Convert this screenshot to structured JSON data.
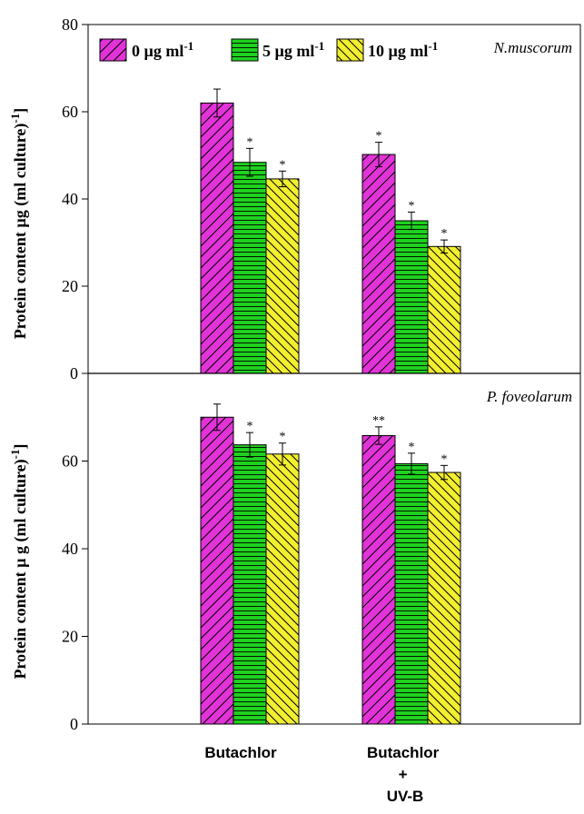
{
  "legend": {
    "items": [
      {
        "prefix": "0 µg ml",
        "sup": "-1",
        "color": "#e233d8",
        "pattern": "diag-fwd"
      },
      {
        "prefix": "5 µg ml",
        "sup": "-1",
        "color": "#1fd11f",
        "pattern": "horiz"
      },
      {
        "prefix": "10 µg ml",
        "sup": "-1",
        "color": "#f2ef2e",
        "pattern": "diag-back"
      }
    ]
  },
  "categories": [
    {
      "lines": [
        "Butachlor"
      ]
    },
    {
      "lines": [
        "Butachlor",
        "+",
        "UV-B"
      ]
    }
  ],
  "chart_data": [
    {
      "type": "bar",
      "panel": "top",
      "annotation": "N.muscorum",
      "ylabel": {
        "main": "Protein content µg (ml culture)",
        "sup": "-1",
        "close": "]"
      },
      "ylim": [
        0,
        80
      ],
      "yticks": [
        0,
        20,
        40,
        60,
        80
      ],
      "categories": [
        "Butachlor",
        "Butachlor + UV-B"
      ],
      "series": [
        {
          "name": "0 µg ml-1",
          "values": [
            62.0,
            50.2
          ],
          "errors": [
            3.2,
            2.8
          ],
          "marks": [
            "",
            "*"
          ]
        },
        {
          "name": "5 µg ml-1",
          "values": [
            48.4,
            35.0
          ],
          "errors": [
            3.2,
            2.0
          ],
          "marks": [
            "*",
            "*"
          ]
        },
        {
          "name": "10 µg ml-1",
          "values": [
            44.6,
            29.1
          ],
          "errors": [
            1.8,
            1.5
          ],
          "marks": [
            "*",
            "*"
          ]
        }
      ]
    },
    {
      "type": "bar",
      "panel": "bottom",
      "annotation": "P. foveolarum",
      "ylabel": {
        "main": "Protein content µ g (ml culture)",
        "sup": "-1",
        "close": "]"
      },
      "ylim": [
        0,
        80
      ],
      "yticks": [
        0,
        20,
        40,
        60
      ],
      "categories": [
        "Butachlor",
        "Butachlor + UV-B"
      ],
      "series": [
        {
          "name": "0 µg ml-1",
          "values": [
            70.0,
            65.8
          ],
          "errors": [
            3.0,
            2.0
          ],
          "marks": [
            "",
            "**"
          ]
        },
        {
          "name": "5 µg ml-1",
          "values": [
            63.7,
            59.4
          ],
          "errors": [
            2.8,
            2.4
          ],
          "marks": [
            "*",
            "*"
          ]
        },
        {
          "name": "10 µg ml-1",
          "values": [
            61.6,
            57.4
          ],
          "errors": [
            2.5,
            1.6
          ],
          "marks": [
            "*",
            "*"
          ]
        }
      ]
    }
  ]
}
